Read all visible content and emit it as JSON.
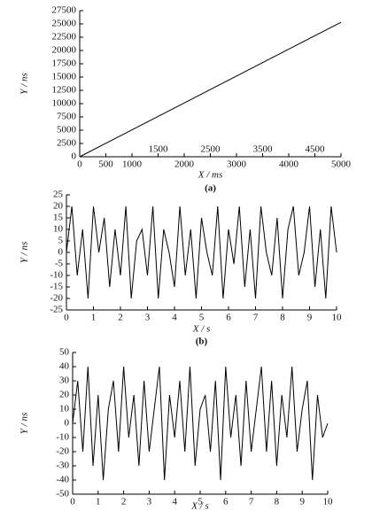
{
  "chart_data": [
    {
      "type": "line",
      "caption": "(a)",
      "xlabel": "X / ms",
      "ylabel": "Y / ns",
      "x": [
        0,
        5000
      ],
      "series": [
        {
          "color": "#000000",
          "values": [
            0,
            25300
          ]
        }
      ],
      "xlim": [
        0,
        5000
      ],
      "xticks": [
        0,
        500,
        1000,
        1500,
        2000,
        2500,
        3000,
        3500,
        4000,
        4500,
        5000
      ],
      "ylim": [
        0,
        27500
      ],
      "yticks": [
        0,
        2500,
        5000,
        7500,
        10000,
        12500,
        15000,
        17500,
        20000,
        22500,
        25000,
        27500
      ],
      "grid": false
    },
    {
      "type": "line",
      "caption": "(b)",
      "xlabel": "X / s",
      "ylabel": "Y / ns",
      "x": [
        0,
        0.2,
        0.4,
        0.6,
        0.8,
        1,
        1.2,
        1.4,
        1.6,
        1.8,
        2,
        2.2,
        2.4,
        2.6,
        2.8,
        3,
        3.2,
        3.4,
        3.6,
        3.8,
        4,
        4.2,
        4.4,
        4.6,
        4.8,
        5,
        5.2,
        5.4,
        5.6,
        5.8,
        6,
        6.2,
        6.4,
        6.6,
        6.8,
        7,
        7.2,
        7.4,
        7.6,
        7.8,
        8,
        8.2,
        8.4,
        8.6,
        8.8,
        9,
        9.2,
        9.4,
        9.6,
        9.8,
        10
      ],
      "series": [
        {
          "color": "#000000",
          "values": [
            0,
            20,
            -10,
            10,
            -20,
            20,
            0,
            15,
            -15,
            10,
            -10,
            20,
            -20,
            5,
            10,
            -10,
            20,
            -20,
            10,
            0,
            -15,
            20,
            -10,
            10,
            -20,
            15,
            0,
            -10,
            20,
            -20,
            10,
            -5,
            20,
            -15,
            10,
            -20,
            20,
            0,
            -10,
            15,
            -20,
            10,
            20,
            -10,
            0,
            20,
            -15,
            10,
            -20,
            20,
            0
          ]
        }
      ],
      "xlim": [
        0,
        10
      ],
      "xticks": [
        0,
        1,
        2,
        3,
        4,
        5,
        6,
        7,
        8,
        9,
        10
      ],
      "ylim": [
        -25,
        25
      ],
      "yticks": [
        -25,
        -20,
        -15,
        -10,
        -5,
        0,
        5,
        10,
        15,
        20,
        25
      ],
      "grid": false
    },
    {
      "type": "line",
      "xlabel": "X / s",
      "ylabel": "Y / ns",
      "x": [
        0,
        0.2,
        0.4,
        0.6,
        0.8,
        1,
        1.2,
        1.4,
        1.6,
        1.8,
        2,
        2.2,
        2.4,
        2.6,
        2.8,
        3,
        3.2,
        3.4,
        3.6,
        3.8,
        4,
        4.2,
        4.4,
        4.6,
        4.8,
        5,
        5.2,
        5.4,
        5.6,
        5.8,
        6,
        6.2,
        6.4,
        6.6,
        6.8,
        7,
        7.2,
        7.4,
        7.6,
        7.8,
        8,
        8.2,
        8.4,
        8.6,
        8.8,
        9,
        9.2,
        9.4,
        9.6,
        9.8,
        10
      ],
      "series": [
        {
          "color": "#000000",
          "values": [
            0,
            30,
            -20,
            40,
            -30,
            20,
            -40,
            10,
            30,
            -20,
            40,
            -10,
            20,
            -30,
            30,
            -20,
            10,
            40,
            -40,
            20,
            -10,
            30,
            -20,
            40,
            -30,
            10,
            20,
            -20,
            30,
            -40,
            40,
            -10,
            20,
            -30,
            30,
            -20,
            10,
            40,
            -20,
            30,
            -30,
            20,
            -10,
            40,
            -20,
            10,
            30,
            -40,
            20,
            -10,
            0
          ]
        }
      ],
      "xlim": [
        0,
        10
      ],
      "xticks": [
        0,
        1,
        2,
        3,
        4,
        5,
        6,
        7,
        8,
        9,
        10
      ],
      "ylim": [
        -50,
        50
      ],
      "yticks": [
        -50,
        -40,
        -30,
        -20,
        -10,
        0,
        10,
        20,
        30,
        40,
        50
      ],
      "grid": false
    }
  ]
}
